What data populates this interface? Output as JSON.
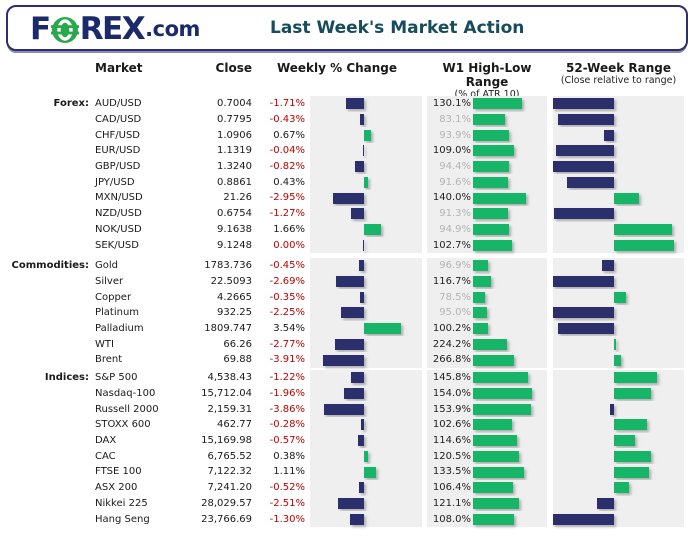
{
  "header": {
    "logo_f": "F",
    "logo_rex": "REX",
    "logo_tld": ".com",
    "title": "Last Week's Market Action"
  },
  "columns": {
    "market": "Market",
    "close": "Close",
    "weekly": "Weekly % Change",
    "w1": "W1 High-Low Range",
    "w1_sub": "(% of ATR 10)",
    "w52": "52-Week Range",
    "w52_sub": "(Close relative to range)"
  },
  "colors": {
    "navy_bar": "#2b2f6c",
    "green_bar": "#17b567",
    "red_text": "#c00000",
    "gray_text": "#b3b3b3",
    "panel_bg": "#efefef",
    "title_teal": "#164c5c",
    "logo_navy": "#1b2a6b",
    "logo_green": "#2aa84e"
  },
  "chart_data": {
    "type": "table",
    "title": "Last Week's Market Action",
    "weekly_axis_max_pct": 5,
    "notes": "weekly bars: navy=negative, green=positive; w52_pos_pct is close position in 52-week range (0=low, 100=high), bars drawn from range midpoint",
    "sections": [
      {
        "label": "Forex:",
        "w1_axis_max": 200,
        "rows": [
          {
            "market": "AUD/USD",
            "close": "0.7004",
            "weekly_label": "-1.71%",
            "weekly_pct": -1.71,
            "w1_label": "130.1%",
            "w1_pct": 130.1,
            "w52_pos_pct": 0
          },
          {
            "market": "CAD/USD",
            "close": "0.7795",
            "weekly_label": "-0.43%",
            "weekly_pct": -0.43,
            "w1_label": "83.1%",
            "w1_pct": 83.1,
            "w52_pos_pct": 5
          },
          {
            "market": "CHF/USD",
            "close": "1.0906",
            "weekly_label": "0.67%",
            "weekly_pct": 0.67,
            "w1_label": "93.9%",
            "w1_pct": 93.9,
            "w52_pos_pct": 42
          },
          {
            "market": "EUR/USD",
            "close": "1.1319",
            "weekly_label": "-0.04%",
            "weekly_pct": -0.04,
            "w1_label": "109.0%",
            "w1_pct": 109.0,
            "w52_pos_pct": 3
          },
          {
            "market": "GBP/USD",
            "close": "1.3240",
            "weekly_label": "-0.82%",
            "weekly_pct": -0.82,
            "w1_label": "94.4%",
            "w1_pct": 94.4,
            "w52_pos_pct": 0
          },
          {
            "market": "JPY/USD",
            "close": "0.8861",
            "weekly_label": "0.43%",
            "weekly_pct": 0.43,
            "w1_label": "91.6%",
            "w1_pct": 91.6,
            "w52_pos_pct": 12
          },
          {
            "market": "MXN/USD",
            "close": "21.26",
            "weekly_label": "-2.95%",
            "weekly_pct": -2.95,
            "w1_label": "140.0%",
            "w1_pct": 140.0,
            "w52_pos_pct": 70
          },
          {
            "market": "NZD/USD",
            "close": "0.6754",
            "weekly_label": "-1.27%",
            "weekly_pct": -1.27,
            "w1_label": "91.3%",
            "w1_pct": 91.3,
            "w52_pos_pct": 2
          },
          {
            "market": "NOK/USD",
            "close": "9.1638",
            "weekly_label": "1.66%",
            "weekly_pct": 1.66,
            "w1_label": "94.9%",
            "w1_pct": 94.9,
            "w52_pos_pct": 97
          },
          {
            "market": "SEK/USD",
            "close": "9.1248",
            "weekly_label": "0.00%",
            "weekly_pct": 0.0,
            "w1_label": "102.7%",
            "w1_pct": 102.7,
            "w52_pos_pct": 98
          }
        ]
      },
      {
        "label": "Commodities:",
        "w1_axis_max": 500,
        "rows": [
          {
            "market": "Gold",
            "close": "1783.736",
            "weekly_label": "-0.45%",
            "weekly_pct": -0.45,
            "w1_label": "96.9%",
            "w1_pct": 96.9,
            "w52_pos_pct": 40
          },
          {
            "market": "Silver",
            "close": "22.5093",
            "weekly_label": "-2.69%",
            "weekly_pct": -2.69,
            "w1_label": "116.7%",
            "w1_pct": 116.7,
            "w52_pos_pct": 1
          },
          {
            "market": "Copper",
            "close": "4.2665",
            "weekly_label": "-0.35%",
            "weekly_pct": -0.35,
            "w1_label": "78.5%",
            "w1_pct": 78.5,
            "w52_pos_pct": 60
          },
          {
            "market": "Platinum",
            "close": "932.25",
            "weekly_label": "-2.25%",
            "weekly_pct": -2.25,
            "w1_label": "95.0%",
            "w1_pct": 95.0,
            "w52_pos_pct": 1
          },
          {
            "market": "Palladium",
            "close": "1809.747",
            "weekly_label": "3.54%",
            "weekly_pct": 3.54,
            "w1_label": "100.2%",
            "w1_pct": 100.2,
            "w52_pos_pct": 5
          },
          {
            "market": "WTI",
            "close": "66.26",
            "weekly_label": "-2.77%",
            "weekly_pct": -2.77,
            "w1_label": "224.2%",
            "w1_pct": 224.2,
            "w52_pos_pct": 52
          },
          {
            "market": "Brent",
            "close": "69.88",
            "weekly_label": "-3.91%",
            "weekly_pct": -3.91,
            "w1_label": "266.8%",
            "w1_pct": 266.8,
            "w52_pos_pct": 56
          }
        ]
      },
      {
        "label": "Indices:",
        "w1_axis_max": 200,
        "rows": [
          {
            "market": "S&P 500",
            "close": "4,538.43",
            "weekly_label": "-1.22%",
            "weekly_pct": -1.22,
            "w1_label": "145.8%",
            "w1_pct": 145.8,
            "w52_pos_pct": 85
          },
          {
            "market": "Nasdaq-100",
            "close": "15,712.04",
            "weekly_label": "-1.96%",
            "weekly_pct": -1.96,
            "w1_label": "154.0%",
            "w1_pct": 154.0,
            "w52_pos_pct": 80
          },
          {
            "market": "Russell 2000",
            "close": "2,159.31",
            "weekly_label": "-3.86%",
            "weekly_pct": -3.86,
            "w1_label": "153.9%",
            "w1_pct": 153.9,
            "w52_pos_pct": 47
          },
          {
            "market": "STOXX 600",
            "close": "462.77",
            "weekly_label": "-0.28%",
            "weekly_pct": -0.28,
            "w1_label": "102.6%",
            "w1_pct": 102.6,
            "w52_pos_pct": 77
          },
          {
            "market": "DAX",
            "close": "15,169.98",
            "weekly_label": "-0.57%",
            "weekly_pct": -0.57,
            "w1_label": "114.6%",
            "w1_pct": 114.6,
            "w52_pos_pct": 67
          },
          {
            "market": "CAC",
            "close": "6,765.52",
            "weekly_label": "0.38%",
            "weekly_pct": 0.38,
            "w1_label": "120.5%",
            "w1_pct": 120.5,
            "w52_pos_pct": 80
          },
          {
            "market": "FTSE 100",
            "close": "7,122.32",
            "weekly_label": "1.11%",
            "weekly_pct": 1.11,
            "w1_label": "133.5%",
            "w1_pct": 133.5,
            "w52_pos_pct": 78
          },
          {
            "market": "ASX 200",
            "close": "7,241.20",
            "weekly_label": "-0.52%",
            "weekly_pct": -0.52,
            "w1_label": "106.4%",
            "w1_pct": 106.4,
            "w52_pos_pct": 62
          },
          {
            "market": "Nikkei 225",
            "close": "28,029.57",
            "weekly_label": "-2.51%",
            "weekly_pct": -2.51,
            "w1_label": "121.1%",
            "w1_pct": 121.1,
            "w52_pos_pct": 36
          },
          {
            "market": "Hang Seng",
            "close": "23,766.69",
            "weekly_label": "-1.30%",
            "weekly_pct": -1.3,
            "w1_label": "108.0%",
            "w1_pct": 108.0,
            "w52_pos_pct": 0
          }
        ]
      }
    ]
  }
}
